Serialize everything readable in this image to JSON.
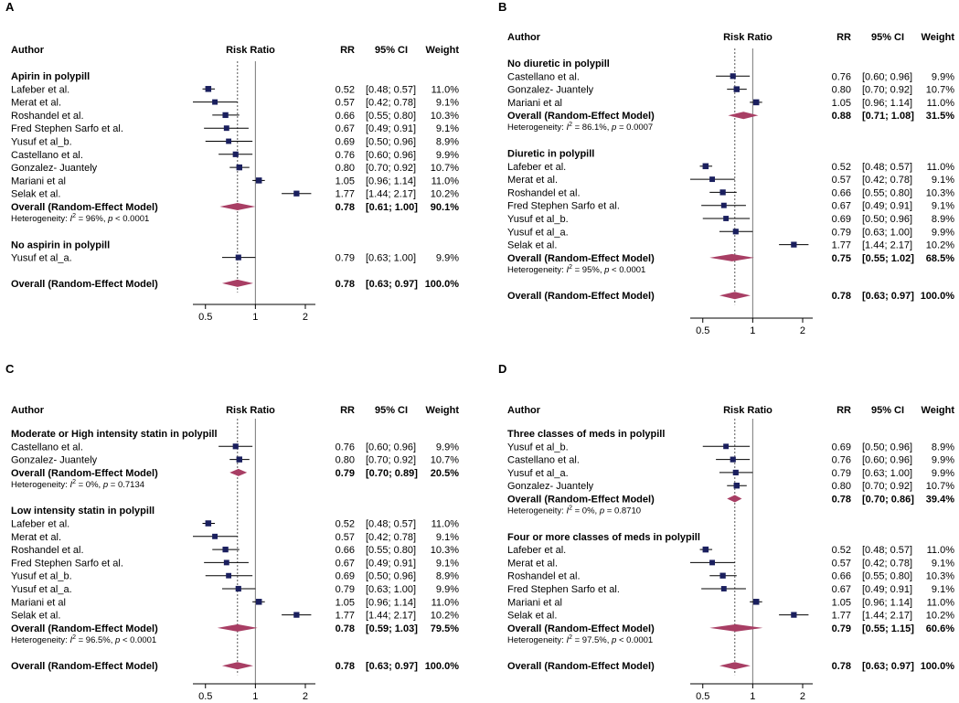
{
  "figure": {
    "panel_letters": [
      "A",
      "B",
      "C",
      "D"
    ],
    "headers": {
      "author": "Author",
      "risk_ratio": "Risk Ratio",
      "rr": "RR",
      "ci": "95% CI",
      "weight": "Weight"
    }
  },
  "colors": {
    "marker": "#1a1f5e",
    "diamond": "#a83e64",
    "ref_line": "#555555"
  },
  "chart_data": [
    {
      "type": "forest",
      "panel": "A",
      "xscale": "log",
      "xlim": [
        0.42,
        2.3
      ],
      "xticks": [
        0.5,
        1,
        2
      ],
      "xtick_labels": [
        "0.5",
        "1",
        "2"
      ],
      "pooled_line": 0.78,
      "groups": [
        {
          "title": "Apirin in polypill",
          "studies": [
            {
              "author": "Lafeber et al.",
              "rr": 0.52,
              "lo": 0.48,
              "hi": 0.57,
              "ci_text": "[0.48; 0.57]",
              "weight": "11.0%",
              "w": 11.0
            },
            {
              "author": "Merat et al.",
              "rr": 0.57,
              "lo": 0.42,
              "hi": 0.78,
              "ci_text": "[0.42; 0.78]",
              "weight": "9.1%",
              "w": 9.1
            },
            {
              "author": "Roshandel et al.",
              "rr": 0.66,
              "lo": 0.55,
              "hi": 0.8,
              "ci_text": "[0.55; 0.80]",
              "weight": "10.3%",
              "w": 10.3
            },
            {
              "author": "Fred Stephen Sarfo et al.",
              "rr": 0.67,
              "lo": 0.49,
              "hi": 0.91,
              "ci_text": "[0.49; 0.91]",
              "weight": "9.1%",
              "w": 9.1
            },
            {
              "author": "Yusuf et al_b.",
              "rr": 0.69,
              "lo": 0.5,
              "hi": 0.96,
              "ci_text": "[0.50; 0.96]",
              "weight": "8.9%",
              "w": 8.9
            },
            {
              "author": "Castellano et al.",
              "rr": 0.76,
              "lo": 0.6,
              "hi": 0.96,
              "ci_text": "[0.60; 0.96]",
              "weight": "9.9%",
              "w": 9.9
            },
            {
              "author": "Gonzalez- Juantely",
              "rr": 0.8,
              "lo": 0.7,
              "hi": 0.92,
              "ci_text": "[0.70; 0.92]",
              "weight": "10.7%",
              "w": 10.7
            },
            {
              "author": "Mariani et al",
              "rr": 1.05,
              "lo": 0.96,
              "hi": 1.14,
              "ci_text": "[0.96; 1.14]",
              "weight": "11.0%",
              "w": 11.0
            },
            {
              "author": "Selak et al.",
              "rr": 1.77,
              "lo": 1.44,
              "hi": 2.17,
              "ci_text": "[1.44; 2.17]",
              "weight": "10.2%",
              "w": 10.2
            }
          ],
          "overall": {
            "label": "Overall (Random-Effect Model)",
            "rr": 0.78,
            "lo": 0.61,
            "hi": 1.0,
            "ci_text": "[0.61; 1.00]",
            "weight": "90.1%"
          },
          "heterogeneity": {
            "pre": "Heterogeneity: ",
            "i2": "I",
            "mid": " = 96%, ",
            "p": "p",
            "post": " < 0.0001"
          }
        },
        {
          "title": "No aspirin in polypill",
          "studies": [
            {
              "author": "Yusuf et al_a.",
              "rr": 0.79,
              "lo": 0.63,
              "hi": 1.0,
              "ci_text": "[0.63; 1.00]",
              "weight": "9.9%",
              "w": 9.9
            }
          ]
        }
      ],
      "total": {
        "label": "Overall (Random-Effect Model)",
        "rr": 0.78,
        "lo": 0.63,
        "hi": 0.97,
        "ci_text": "[0.63; 0.97]",
        "weight": "100.0%"
      }
    },
    {
      "type": "forest",
      "panel": "B",
      "xscale": "log",
      "xlim": [
        0.42,
        2.3
      ],
      "xticks": [
        0.5,
        1,
        2
      ],
      "xtick_labels": [
        "0.5",
        "1",
        "2"
      ],
      "pooled_line": 0.78,
      "groups": [
        {
          "title": "No diuretic in polypill",
          "studies": [
            {
              "author": "Castellano et al.",
              "rr": 0.76,
              "lo": 0.6,
              "hi": 0.96,
              "ci_text": "[0.60; 0.96]",
              "weight": "9.9%",
              "w": 9.9
            },
            {
              "author": "Gonzalez- Juantely",
              "rr": 0.8,
              "lo": 0.7,
              "hi": 0.92,
              "ci_text": "[0.70; 0.92]",
              "weight": "10.7%",
              "w": 10.7
            },
            {
              "author": "Mariani et al",
              "rr": 1.05,
              "lo": 0.96,
              "hi": 1.14,
              "ci_text": "[0.96; 1.14]",
              "weight": "11.0%",
              "w": 11.0
            }
          ],
          "overall": {
            "label": "Overall (Random-Effect Model)",
            "rr": 0.88,
            "lo": 0.71,
            "hi": 1.08,
            "ci_text": "[0.71; 1.08]",
            "weight": "31.5%"
          },
          "heterogeneity": {
            "pre": "Heterogeneity: ",
            "i2": "I",
            "mid": " = 86.1%, ",
            "p": "p",
            "post": " = 0.0007"
          }
        },
        {
          "title": "Diuretic in polypill",
          "studies": [
            {
              "author": "Lafeber et al.",
              "rr": 0.52,
              "lo": 0.48,
              "hi": 0.57,
              "ci_text": "[0.48; 0.57]",
              "weight": "11.0%",
              "w": 11.0
            },
            {
              "author": "Merat et al.",
              "rr": 0.57,
              "lo": 0.42,
              "hi": 0.78,
              "ci_text": "[0.42; 0.78]",
              "weight": "9.1%",
              "w": 9.1
            },
            {
              "author": "Roshandel et al.",
              "rr": 0.66,
              "lo": 0.55,
              "hi": 0.8,
              "ci_text": "[0.55; 0.80]",
              "weight": "10.3%",
              "w": 10.3
            },
            {
              "author": "Fred Stephen Sarfo et al.",
              "rr": 0.67,
              "lo": 0.49,
              "hi": 0.91,
              "ci_text": "[0.49; 0.91]",
              "weight": "9.1%",
              "w": 9.1
            },
            {
              "author": "Yusuf et al_b.",
              "rr": 0.69,
              "lo": 0.5,
              "hi": 0.96,
              "ci_text": "[0.50; 0.96]",
              "weight": "8.9%",
              "w": 8.9
            },
            {
              "author": "Yusuf et al_a.",
              "rr": 0.79,
              "lo": 0.63,
              "hi": 1.0,
              "ci_text": "[0.63; 1.00]",
              "weight": "9.9%",
              "w": 9.9
            },
            {
              "author": "Selak et al.",
              "rr": 1.77,
              "lo": 1.44,
              "hi": 2.17,
              "ci_text": "[1.44; 2.17]",
              "weight": "10.2%",
              "w": 10.2
            }
          ],
          "overall": {
            "label": "Overall (Random-Effect Model)",
            "rr": 0.75,
            "lo": 0.55,
            "hi": 1.02,
            "ci_text": "[0.55; 1.02]",
            "weight": "68.5%"
          },
          "heterogeneity": {
            "pre": "Heterogeneity: ",
            "i2": "I",
            "mid": " = 95%, ",
            "p": "p",
            "post": " < 0.0001"
          }
        }
      ],
      "total": {
        "label": "Overall (Random-Effect Model)",
        "rr": 0.78,
        "lo": 0.63,
        "hi": 0.97,
        "ci_text": "[0.63; 0.97]",
        "weight": "100.0%"
      }
    },
    {
      "type": "forest",
      "panel": "C",
      "xscale": "log",
      "xlim": [
        0.42,
        2.3
      ],
      "xticks": [
        0.5,
        1,
        2
      ],
      "xtick_labels": [
        "0.5",
        "1",
        "2"
      ],
      "pooled_line": 0.78,
      "groups": [
        {
          "title": "Moderate or High intensity statin in polypill",
          "studies": [
            {
              "author": "Castellano et al.",
              "rr": 0.76,
              "lo": 0.6,
              "hi": 0.96,
              "ci_text": "[0.60; 0.96]",
              "weight": "9.9%",
              "w": 9.9
            },
            {
              "author": "Gonzalez- Juantely",
              "rr": 0.8,
              "lo": 0.7,
              "hi": 0.92,
              "ci_text": "[0.70; 0.92]",
              "weight": "10.7%",
              "w": 10.7
            }
          ],
          "overall": {
            "label": "Overall (Random-Effect Model)",
            "rr": 0.79,
            "lo": 0.7,
            "hi": 0.89,
            "ci_text": "[0.70; 0.89]",
            "weight": "20.5%"
          },
          "heterogeneity": {
            "pre": "Heterogeneity: ",
            "i2": "I",
            "mid": " = 0%, ",
            "p": "p",
            "post": " = 0.7134"
          }
        },
        {
          "title": "Low intensity statin in polypill",
          "studies": [
            {
              "author": "Lafeber et al.",
              "rr": 0.52,
              "lo": 0.48,
              "hi": 0.57,
              "ci_text": "[0.48; 0.57]",
              "weight": "11.0%",
              "w": 11.0
            },
            {
              "author": "Merat et al.",
              "rr": 0.57,
              "lo": 0.42,
              "hi": 0.78,
              "ci_text": "[0.42; 0.78]",
              "weight": "9.1%",
              "w": 9.1
            },
            {
              "author": "Roshandel et al.",
              "rr": 0.66,
              "lo": 0.55,
              "hi": 0.8,
              "ci_text": "[0.55; 0.80]",
              "weight": "10.3%",
              "w": 10.3
            },
            {
              "author": "Fred Stephen Sarfo et al.",
              "rr": 0.67,
              "lo": 0.49,
              "hi": 0.91,
              "ci_text": "[0.49; 0.91]",
              "weight": "9.1%",
              "w": 9.1
            },
            {
              "author": "Yusuf et al_b.",
              "rr": 0.69,
              "lo": 0.5,
              "hi": 0.96,
              "ci_text": "[0.50; 0.96]",
              "weight": "8.9%",
              "w": 8.9
            },
            {
              "author": "Yusuf et al_a.",
              "rr": 0.79,
              "lo": 0.63,
              "hi": 1.0,
              "ci_text": "[0.63; 1.00]",
              "weight": "9.9%",
              "w": 9.9
            },
            {
              "author": "Mariani et al",
              "rr": 1.05,
              "lo": 0.96,
              "hi": 1.14,
              "ci_text": "[0.96; 1.14]",
              "weight": "11.0%",
              "w": 11.0
            },
            {
              "author": "Selak et al.",
              "rr": 1.77,
              "lo": 1.44,
              "hi": 2.17,
              "ci_text": "[1.44; 2.17]",
              "weight": "10.2%",
              "w": 10.2
            }
          ],
          "overall": {
            "label": "Overall (Random-Effect Model)",
            "rr": 0.78,
            "lo": 0.59,
            "hi": 1.03,
            "ci_text": "[0.59; 1.03]",
            "weight": "79.5%"
          },
          "heterogeneity": {
            "pre": "Heterogeneity: ",
            "i2": "I",
            "mid": " = 96.5%, ",
            "p": "p",
            "post": " < 0.0001"
          }
        }
      ],
      "total": {
        "label": "Overall (Random-Effect Model)",
        "rr": 0.78,
        "lo": 0.63,
        "hi": 0.97,
        "ci_text": "[0.63; 0.97]",
        "weight": "100.0%"
      }
    },
    {
      "type": "forest",
      "panel": "D",
      "xscale": "log",
      "xlim": [
        0.42,
        2.3
      ],
      "xticks": [
        0.5,
        1,
        2
      ],
      "xtick_labels": [
        "0.5",
        "1",
        "2"
      ],
      "pooled_line": 0.78,
      "groups": [
        {
          "title": "Three classes of meds in polypill",
          "studies": [
            {
              "author": "Yusuf et al_b.",
              "rr": 0.69,
              "lo": 0.5,
              "hi": 0.96,
              "ci_text": "[0.50; 0.96]",
              "weight": "8.9%",
              "w": 8.9
            },
            {
              "author": "Castellano et al.",
              "rr": 0.76,
              "lo": 0.6,
              "hi": 0.96,
              "ci_text": "[0.60; 0.96]",
              "weight": "9.9%",
              "w": 9.9
            },
            {
              "author": "Yusuf et al_a.",
              "rr": 0.79,
              "lo": 0.63,
              "hi": 1.0,
              "ci_text": "[0.63; 1.00]",
              "weight": "9.9%",
              "w": 9.9
            },
            {
              "author": "Gonzalez- Juantely",
              "rr": 0.8,
              "lo": 0.7,
              "hi": 0.92,
              "ci_text": "[0.70; 0.92]",
              "weight": "10.7%",
              "w": 10.7
            }
          ],
          "overall": {
            "label": "Overall (Random-Effect Model)",
            "rr": 0.78,
            "lo": 0.7,
            "hi": 0.86,
            "ci_text": "[0.70; 0.86]",
            "weight": "39.4%"
          },
          "heterogeneity": {
            "pre": "Heterogeneity: ",
            "i2": "I",
            "mid": " = 0%, ",
            "p": "p",
            "post": " = 0.8710"
          }
        },
        {
          "title": "Four or more classes of meds in polypill",
          "studies": [
            {
              "author": "Lafeber et al.",
              "rr": 0.52,
              "lo": 0.48,
              "hi": 0.57,
              "ci_text": "[0.48; 0.57]",
              "weight": "11.0%",
              "w": 11.0
            },
            {
              "author": "Merat et al.",
              "rr": 0.57,
              "lo": 0.42,
              "hi": 0.78,
              "ci_text": "[0.42; 0.78]",
              "weight": "9.1%",
              "w": 9.1
            },
            {
              "author": "Roshandel et al.",
              "rr": 0.66,
              "lo": 0.55,
              "hi": 0.8,
              "ci_text": "[0.55; 0.80]",
              "weight": "10.3%",
              "w": 10.3
            },
            {
              "author": "Fred Stephen Sarfo et al.",
              "rr": 0.67,
              "lo": 0.49,
              "hi": 0.91,
              "ci_text": "[0.49; 0.91]",
              "weight": "9.1%",
              "w": 9.1
            },
            {
              "author": "Mariani et al",
              "rr": 1.05,
              "lo": 0.96,
              "hi": 1.14,
              "ci_text": "[0.96; 1.14]",
              "weight": "11.0%",
              "w": 11.0
            },
            {
              "author": "Selak et al.",
              "rr": 1.77,
              "lo": 1.44,
              "hi": 2.17,
              "ci_text": "[1.44; 2.17]",
              "weight": "10.2%",
              "w": 10.2
            }
          ],
          "overall": {
            "label": "Overall (Random-Effect Model)",
            "rr": 0.79,
            "lo": 0.55,
            "hi": 1.15,
            "ci_text": "[0.55; 1.15]",
            "weight": "60.6%"
          },
          "heterogeneity": {
            "pre": "Heterogeneity: ",
            "i2": "I",
            "mid": " = 97.5%, ",
            "p": "p",
            "post": " < 0.0001"
          }
        }
      ],
      "total": {
        "label": "Overall (Random-Effect Model)",
        "rr": 0.78,
        "lo": 0.63,
        "hi": 0.97,
        "ci_text": "[0.63; 0.97]",
        "weight": "100.0%"
      }
    }
  ]
}
